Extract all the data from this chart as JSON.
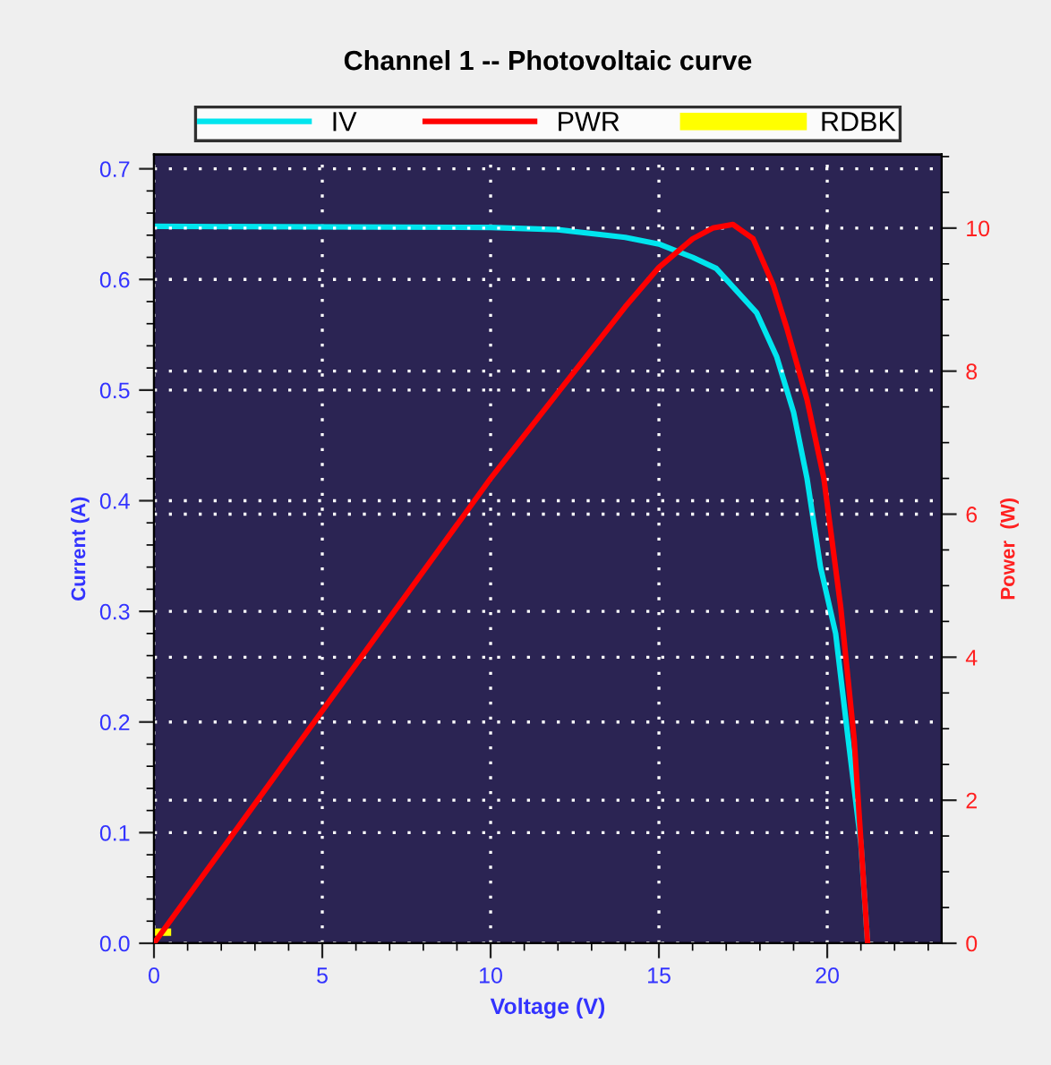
{
  "chart_data": {
    "type": "line",
    "title": "Channel 1 -- Photovoltaic curve",
    "xlabel": "Voltage (V)",
    "ylabel": "Current (A)",
    "y2label": "Power  (W)",
    "xlim": [
      0,
      23.4
    ],
    "xticks": [
      0,
      5,
      10,
      15,
      20
    ],
    "ylim": [
      0,
      0.713
    ],
    "yticks": [
      {
        "value": 0,
        "label": "0.0"
      },
      0.1,
      0.2,
      0.3,
      0.4,
      0.5,
      0.6,
      0.7
    ],
    "y2lim": [
      0,
      11.03
    ],
    "y2ticks": [
      0,
      2,
      4,
      6,
      8,
      10
    ],
    "grid": true,
    "legend": "top",
    "marker": "none",
    "line_style": "solid",
    "series": [
      {
        "name": "IV",
        "color": "#00e5ee",
        "x": [
          0,
          10,
          12,
          14,
          15,
          16,
          16.7,
          17.3,
          17.9,
          18.5,
          19,
          19.4,
          19.8,
          20.25,
          20.6,
          21.0,
          21.2
        ],
        "values": [
          0.648,
          0.647,
          0.645,
          0.638,
          0.632,
          0.62,
          0.61,
          0.59,
          0.57,
          0.53,
          0.48,
          0.42,
          0.34,
          0.28,
          0.19,
          0.09,
          0
        ]
      },
      {
        "name": "PWR",
        "color": "#ff0000",
        "axis": "y2",
        "x": [
          0,
          5,
          10,
          12,
          14,
          15,
          16,
          16.6,
          17.2,
          17.8,
          18.4,
          18.8,
          19.4,
          19.9,
          20.4,
          20.8,
          21.2
        ],
        "values": [
          0,
          3.25,
          6.5,
          7.7,
          8.9,
          9.45,
          9.85,
          10.0,
          10.05,
          9.85,
          9.2,
          8.6,
          7.6,
          6.5,
          4.7,
          2.85,
          0
        ]
      },
      {
        "name": "RDBK",
        "color": "#ffff00",
        "x": [
          0,
          0.4
        ],
        "values": [
          0.01,
          0.01
        ]
      }
    ]
  }
}
